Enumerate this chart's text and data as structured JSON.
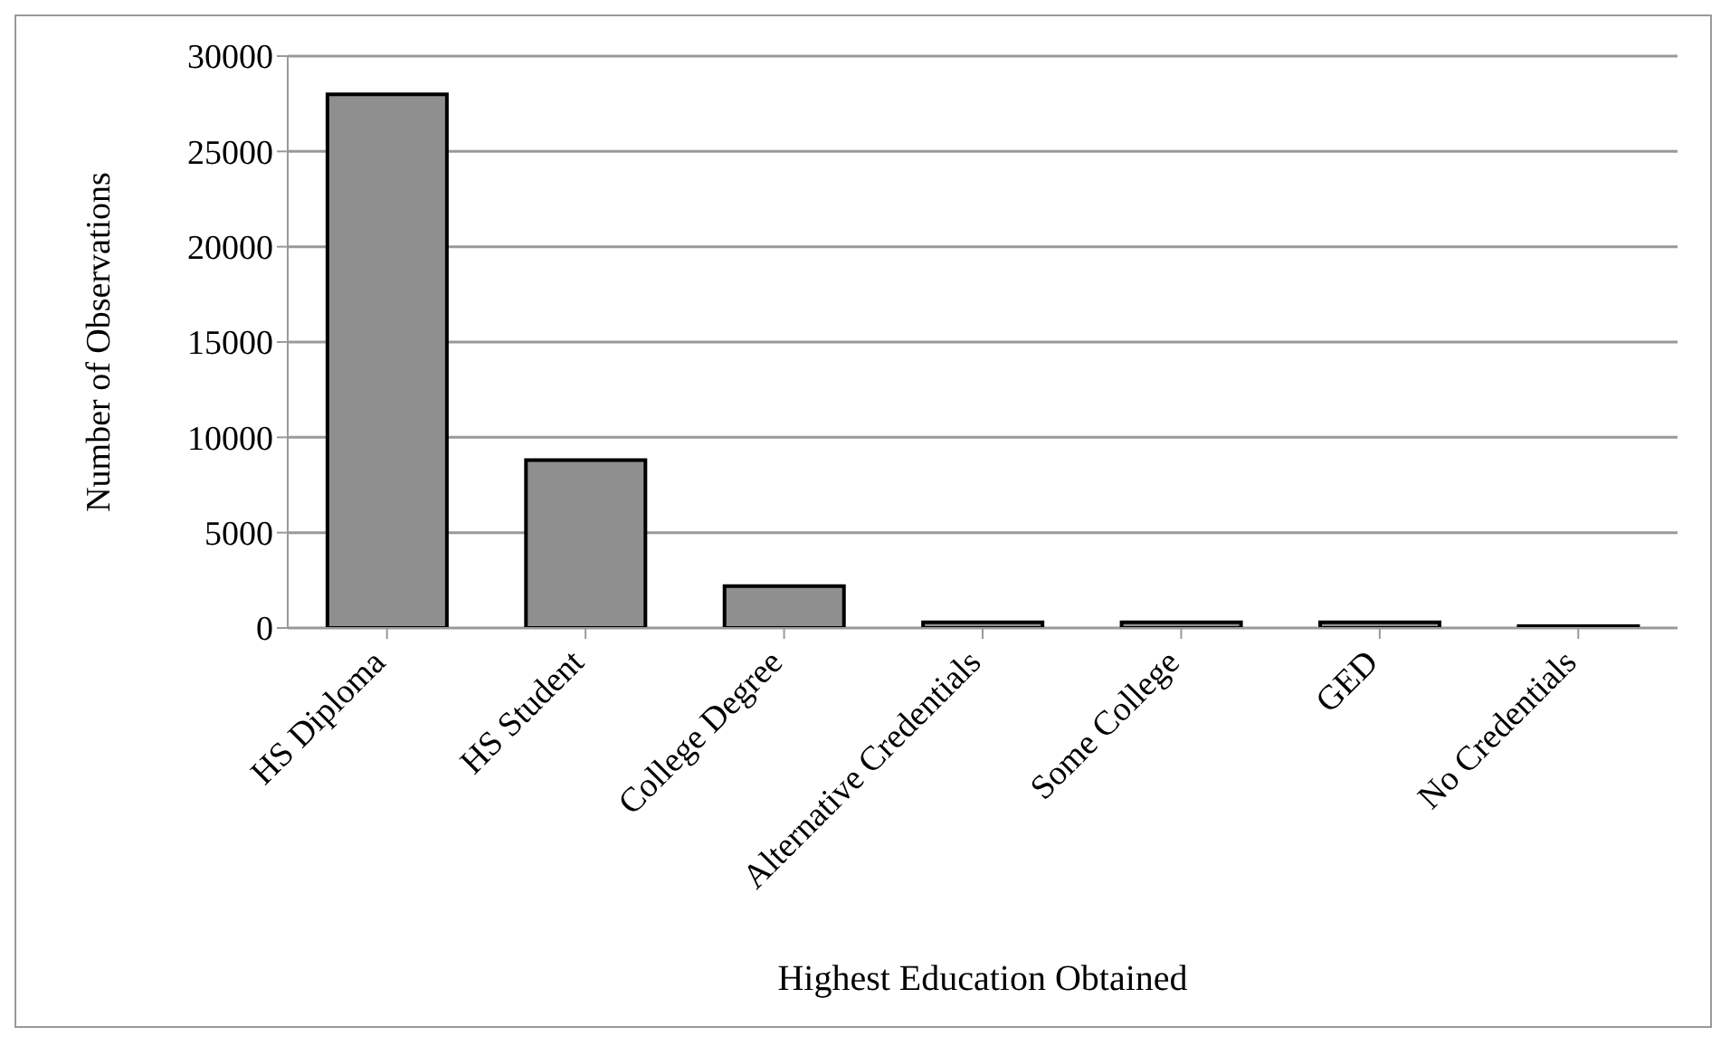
{
  "chart_data": {
    "type": "bar",
    "xlabel": "Highest Education Obtained",
    "ylabel": "Number of Observations",
    "categories": [
      "HS Diploma",
      "HS Student",
      "College Degree",
      "Alternative Credentials",
      "Some College",
      "GED",
      "No Credentials"
    ],
    "values": [
      28000,
      8800,
      2200,
      300,
      300,
      300,
      100
    ],
    "color": "#8f8f8f",
    "ylim": [
      0,
      30000
    ],
    "yticks": [
      0,
      5000,
      10000,
      15000,
      20000,
      25000,
      30000
    ],
    "grid": "y"
  }
}
